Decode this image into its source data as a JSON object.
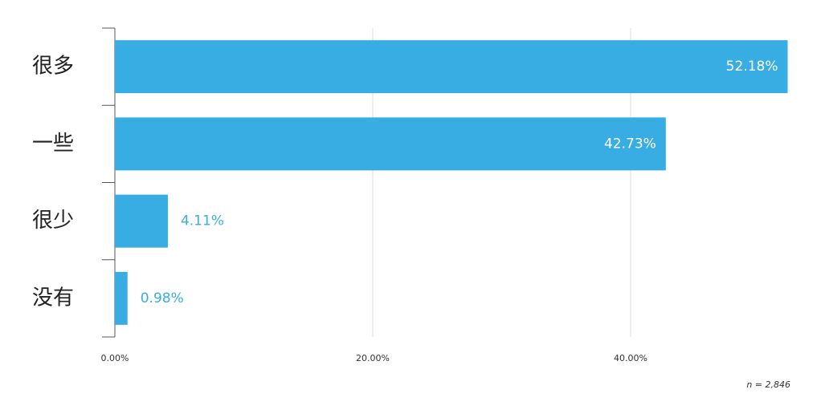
{
  "chart_data": {
    "type": "bar",
    "orientation": "horizontal",
    "categories": [
      "很多",
      "一些",
      "很少",
      "没有"
    ],
    "values": [
      52.18,
      42.73,
      4.11,
      0.98
    ],
    "value_labels": [
      "52.18%",
      "42.73%",
      "4.11%",
      "0.98%"
    ],
    "color": "#38ade3",
    "xlim": [
      0,
      53
    ],
    "xticks": [
      {
        "value": 0,
        "label": "0.00%"
      },
      {
        "value": 20,
        "label": "20.00%"
      },
      {
        "value": 40,
        "label": "40.00%"
      }
    ],
    "grid": true,
    "annotation": "n = 2,846"
  }
}
